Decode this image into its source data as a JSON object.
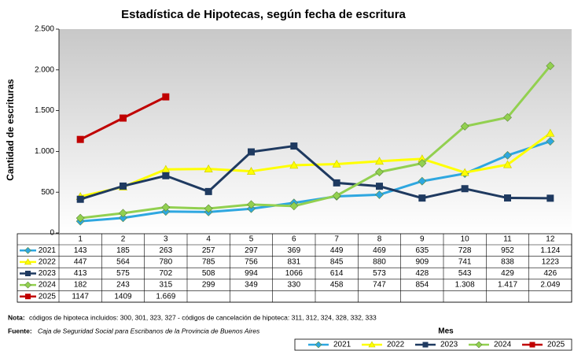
{
  "chart_data": {
    "type": "line",
    "title": "Estadística de Hipotecas, según fecha de escritura",
    "y_label": "Cantidad de escrituras",
    "x_label": "Mes",
    "note_label": "Nota:",
    "note": "códigos de hipoteca incluidos: 300, 301, 323, 327 - códigos de cancelación de hipoteca: 311, 312, 324, 328, 332, 333",
    "source_label": "Fuente:",
    "source": "Caja de Seguridad Social para Escribanos de la Provincia de Buenos Aires",
    "categories": [
      "1",
      "2",
      "3",
      "4",
      "5",
      "6",
      "7",
      "8",
      "9",
      "10",
      "11",
      "12"
    ],
    "ylim": [
      0,
      2500
    ],
    "yticks": [
      0,
      500,
      {
        "value": 1000,
        "label": "1.000"
      },
      {
        "value": 1500,
        "label": "1.500"
      },
      {
        "value": 2000,
        "label": "2.000"
      },
      {
        "value": 2500,
        "label": "2.500"
      }
    ],
    "grid": false,
    "legend": "bottom",
    "series": [
      {
        "name": "2021",
        "color": "#2ea7e0",
        "marker": "diamond",
        "values": [
          143,
          185,
          263,
          257,
          297,
          369,
          449,
          469,
          635,
          728,
          952,
          1124
        ],
        "value_labels": [
          "143",
          "185",
          "263",
          "257",
          "297",
          "369",
          "449",
          "469",
          "635",
          "728",
          "952",
          "1.124"
        ]
      },
      {
        "name": "2022",
        "color": "#ffff00",
        "marker": "triangle",
        "values": [
          447,
          564,
          780,
          785,
          756,
          831,
          845,
          880,
          909,
          741,
          838,
          1223
        ]
      },
      {
        "name": "2023",
        "color": "#1f3a60",
        "marker": "square",
        "values": [
          413,
          575,
          702,
          508,
          994,
          1066,
          614,
          573,
          428,
          543,
          429,
          426
        ]
      },
      {
        "name": "2024",
        "color": "#92d050",
        "marker": "diamond",
        "values": [
          182,
          243,
          315,
          299,
          349,
          330,
          458,
          747,
          854,
          1308,
          1417,
          2049
        ],
        "value_labels": [
          "182",
          "243",
          "315",
          "299",
          "349",
          "330",
          "458",
          "747",
          "854",
          "1.308",
          "1.417",
          "2.049"
        ]
      },
      {
        "name": "2025",
        "color": "#c00000",
        "marker": "square",
        "values": [
          1147,
          1409,
          1669,
          null,
          null,
          null,
          null,
          null,
          null,
          null,
          null,
          null
        ],
        "value_labels": [
          "1147",
          "1409",
          "1.669",
          null,
          null,
          null,
          null,
          null,
          null,
          null,
          null,
          null
        ]
      }
    ]
  }
}
